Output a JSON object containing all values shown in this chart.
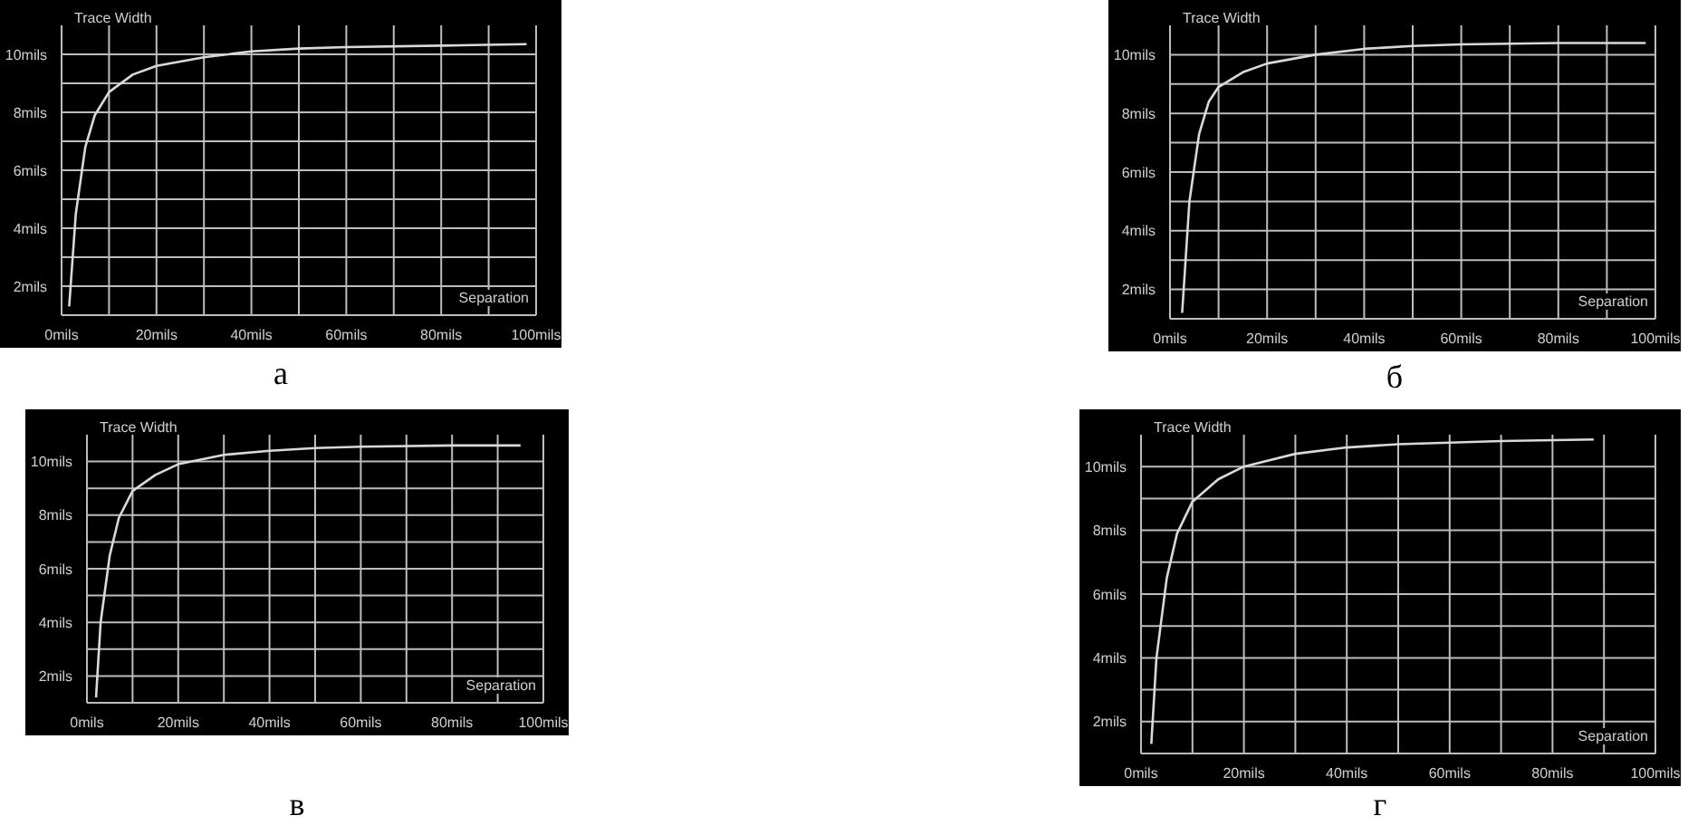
{
  "chart_data": [
    {
      "type": "line",
      "xlabel": "Separation",
      "ylabel": "Trace Width",
      "annotations": [
        "а"
      ],
      "grid": true,
      "marker": "none",
      "xlim": [
        0,
        100
      ],
      "ylim": [
        1,
        11
      ],
      "xticks": [
        {
          "value": 0,
          "label": "0mils"
        },
        {
          "value": 10,
          "label": null
        },
        {
          "value": 20,
          "label": "20mils"
        },
        {
          "value": 30,
          "label": null
        },
        {
          "value": 40,
          "label": "40mils"
        },
        {
          "value": 50,
          "label": null
        },
        {
          "value": 60,
          "label": "60mils"
        },
        {
          "value": 70,
          "label": null
        },
        {
          "value": 80,
          "label": "80mils"
        },
        {
          "value": 90,
          "label": null
        },
        {
          "value": 100,
          "label": "100mils"
        }
      ],
      "yticks": [
        {
          "value": 2,
          "label": "2mils"
        },
        {
          "value": 3,
          "label": null
        },
        {
          "value": 4,
          "label": "4mils"
        },
        {
          "value": 5,
          "label": null
        },
        {
          "value": 6,
          "label": "6mils"
        },
        {
          "value": 7,
          "label": null
        },
        {
          "value": 8,
          "label": "8mils"
        },
        {
          "value": 9,
          "label": null
        },
        {
          "value": 10,
          "label": "10mils"
        }
      ],
      "x": [
        1.6,
        3,
        5,
        7,
        10,
        15,
        20,
        30,
        40,
        50,
        60,
        80,
        98
      ],
      "series": [
        {
          "color": "#d9d9d9",
          "values": [
            1.3,
            4.5,
            6.8,
            7.9,
            8.7,
            9.3,
            9.6,
            9.9,
            10.1,
            10.2,
            10.25,
            10.3,
            10.35
          ]
        }
      ]
    },
    {
      "type": "line",
      "xlabel": "Separation",
      "ylabel": "Trace Width",
      "annotations": [
        "б"
      ],
      "grid": true,
      "marker": "none",
      "xlim": [
        0,
        100
      ],
      "ylim": [
        1,
        11
      ],
      "xticks": [
        {
          "value": 0,
          "label": "0mils"
        },
        {
          "value": 10,
          "label": null
        },
        {
          "value": 20,
          "label": "20mils"
        },
        {
          "value": 30,
          "label": null
        },
        {
          "value": 40,
          "label": "40mils"
        },
        {
          "value": 50,
          "label": null
        },
        {
          "value": 60,
          "label": "60mils"
        },
        {
          "value": 70,
          "label": null
        },
        {
          "value": 80,
          "label": "80mils"
        },
        {
          "value": 90,
          "label": null
        },
        {
          "value": 100,
          "label": "100mils"
        }
      ],
      "yticks": [
        {
          "value": 2,
          "label": "2mils"
        },
        {
          "value": 3,
          "label": null
        },
        {
          "value": 4,
          "label": "4mils"
        },
        {
          "value": 5,
          "label": null
        },
        {
          "value": 6,
          "label": "6mils"
        },
        {
          "value": 7,
          "label": null
        },
        {
          "value": 8,
          "label": "8mils"
        },
        {
          "value": 9,
          "label": null
        },
        {
          "value": 10,
          "label": "10mils"
        }
      ],
      "x": [
        2.5,
        4,
        6,
        8,
        10,
        15,
        20,
        30,
        40,
        50,
        60,
        80,
        98
      ],
      "series": [
        {
          "color": "#d9d9d9",
          "values": [
            1.2,
            5,
            7.3,
            8.4,
            8.9,
            9.4,
            9.7,
            10,
            10.2,
            10.3,
            10.35,
            10.4,
            10.4
          ]
        }
      ]
    },
    {
      "type": "line",
      "xlabel": "Separation",
      "ylabel": "Trace Width",
      "annotations": [
        "в"
      ],
      "grid": true,
      "marker": "none",
      "xlim": [
        0,
        100
      ],
      "ylim": [
        1,
        11
      ],
      "xticks": [
        {
          "value": 0,
          "label": "0mils"
        },
        {
          "value": 10,
          "label": null
        },
        {
          "value": 20,
          "label": "20mils"
        },
        {
          "value": 30,
          "label": null
        },
        {
          "value": 40,
          "label": "40mils"
        },
        {
          "value": 50,
          "label": null
        },
        {
          "value": 60,
          "label": "60mils"
        },
        {
          "value": 70,
          "label": null
        },
        {
          "value": 80,
          "label": "80mils"
        },
        {
          "value": 90,
          "label": null
        },
        {
          "value": 100,
          "label": "100mils"
        }
      ],
      "yticks": [
        {
          "value": 2,
          "label": "2mils"
        },
        {
          "value": 3,
          "label": null
        },
        {
          "value": 4,
          "label": "4mils"
        },
        {
          "value": 5,
          "label": null
        },
        {
          "value": 6,
          "label": "6mils"
        },
        {
          "value": 7,
          "label": null
        },
        {
          "value": 8,
          "label": "8mils"
        },
        {
          "value": 9,
          "label": null
        },
        {
          "value": 10,
          "label": "10mils"
        }
      ],
      "x": [
        2,
        3,
        5,
        7,
        10,
        15,
        20,
        30,
        40,
        50,
        60,
        80,
        95
      ],
      "series": [
        {
          "color": "#d9d9d9",
          "values": [
            1.2,
            4,
            6.5,
            7.9,
            8.9,
            9.5,
            9.9,
            10.25,
            10.4,
            10.5,
            10.55,
            10.6,
            10.6
          ]
        }
      ]
    },
    {
      "type": "line",
      "xlabel": "Separation",
      "ylabel": "Trace Width",
      "annotations": [
        "г"
      ],
      "grid": true,
      "marker": "none",
      "xlim": [
        0,
        100
      ],
      "ylim": [
        1,
        11
      ],
      "xticks": [
        {
          "value": 0,
          "label": "0mils"
        },
        {
          "value": 10,
          "label": null
        },
        {
          "value": 20,
          "label": "20mils"
        },
        {
          "value": 30,
          "label": null
        },
        {
          "value": 40,
          "label": "40mils"
        },
        {
          "value": 50,
          "label": null
        },
        {
          "value": 60,
          "label": "60mils"
        },
        {
          "value": 70,
          "label": null
        },
        {
          "value": 80,
          "label": "80mils"
        },
        {
          "value": 90,
          "label": null
        },
        {
          "value": 100,
          "label": "100mils"
        }
      ],
      "yticks": [
        {
          "value": 2,
          "label": "2mils"
        },
        {
          "value": 3,
          "label": null
        },
        {
          "value": 4,
          "label": "4mils"
        },
        {
          "value": 5,
          "label": null
        },
        {
          "value": 6,
          "label": "6mils"
        },
        {
          "value": 7,
          "label": null
        },
        {
          "value": 8,
          "label": "8mils"
        },
        {
          "value": 9,
          "label": null
        },
        {
          "value": 10,
          "label": "10mils"
        }
      ],
      "x": [
        2,
        3,
        5,
        7,
        10,
        15,
        20,
        30,
        40,
        50,
        70,
        88
      ],
      "series": [
        {
          "color": "#d9d9d9",
          "values": [
            1.3,
            4,
            6.5,
            7.9,
            8.9,
            9.6,
            10,
            10.4,
            10.6,
            10.7,
            10.8,
            10.85
          ]
        }
      ]
    }
  ]
}
